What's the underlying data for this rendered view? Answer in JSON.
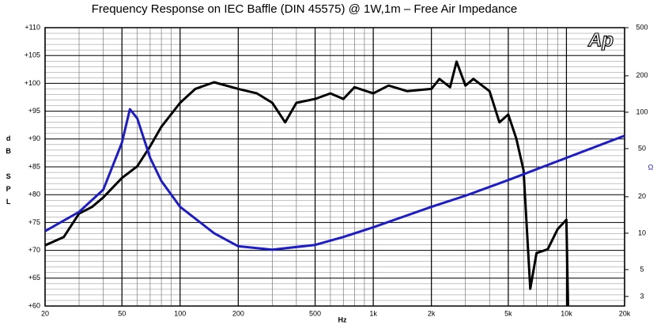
{
  "chart_data": {
    "type": "line",
    "title": "Frequency Response on IEC Baffle (DIN 45575)  @ 1W,1m – Free Air Impedance",
    "xlabel": "Hz",
    "ylabel": "dB SPL",
    "y2label": "Ω",
    "logo": "Ap",
    "xlog": true,
    "y2log": true,
    "grid": true,
    "xlim": [
      20,
      20000
    ],
    "xticks": [
      20,
      50,
      100,
      200,
      500,
      {
        "value": 1000,
        "label": "1k"
      },
      {
        "value": 2000,
        "label": "2k"
      },
      {
        "value": 5000,
        "label": "5k"
      },
      {
        "value": 10000,
        "label": "10k"
      },
      {
        "value": 20000,
        "label": "20k"
      }
    ],
    "ylim": [
      60,
      110
    ],
    "yticks": [
      {
        "value": 60,
        "label": "+60"
      },
      {
        "value": 65,
        "label": "+65"
      },
      {
        "value": 70,
        "label": "+70"
      },
      {
        "value": 75,
        "label": "+75"
      },
      {
        "value": 80,
        "label": "+80"
      },
      {
        "value": 85,
        "label": "+85"
      },
      {
        "value": 90,
        "label": "+90"
      },
      {
        "value": 95,
        "label": "+95"
      },
      {
        "value": 100,
        "label": "+100"
      },
      {
        "value": 105,
        "label": "+105"
      },
      {
        "value": 110,
        "label": "+110"
      }
    ],
    "y2lim": [
      2.5,
      500
    ],
    "y2ticks": [
      3,
      5,
      10,
      20,
      50,
      100,
      200,
      500
    ],
    "series": [
      {
        "color": "#000000",
        "x": [
          20,
          25,
          30,
          35,
          40,
          50,
          60,
          70,
          80,
          100,
          120,
          150,
          200,
          250,
          300,
          350,
          400,
          500,
          600,
          700,
          800,
          1000,
          1200,
          1500,
          2000,
          2200,
          2500,
          2700,
          3000,
          3300,
          4000,
          4500,
          5000,
          5500,
          6000,
          6500,
          7000,
          8000,
          9000,
          10000,
          10200
        ],
        "values": [
          70.9,
          72.4,
          76.6,
          77.8,
          79.5,
          83,
          85.1,
          88.7,
          92.2,
          96.5,
          99,
          100.2,
          99,
          98.2,
          96.5,
          93,
          96.5,
          97.2,
          98.2,
          97.2,
          99.3,
          98.2,
          99.6,
          98.6,
          99,
          100.8,
          99.3,
          103.9,
          99.6,
          100.8,
          98.6,
          93,
          94.4,
          90.1,
          84.4,
          63.1,
          69.5,
          70.2,
          73.8,
          75.5,
          60
        ]
      },
      {
        "color": "#1c1ccc",
        "axis": "y2",
        "x": [
          20,
          30,
          40,
          50,
          55,
          60,
          70,
          80,
          100,
          150,
          200,
          300,
          500,
          700,
          1000,
          2000,
          3000,
          5000,
          10000,
          20000
        ],
        "values": [
          10.4,
          15,
          22.9,
          56,
          106,
          89,
          42,
          27,
          16.5,
          10,
          7.8,
          7.3,
          8,
          9.3,
          11.2,
          16.5,
          20.4,
          27.5,
          42,
          64
        ]
      }
    ]
  }
}
